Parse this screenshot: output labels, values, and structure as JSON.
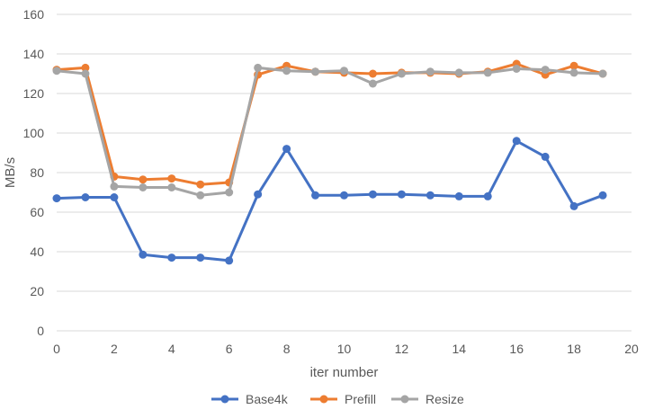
{
  "chart_data": {
    "type": "line",
    "title": "",
    "xlabel": "iter number",
    "ylabel": "MB/s",
    "xlim": [
      0,
      20
    ],
    "ylim": [
      0,
      160
    ],
    "xticks": [
      0,
      2,
      4,
      6,
      8,
      10,
      12,
      14,
      16,
      18,
      20
    ],
    "yticks": [
      0,
      20,
      40,
      60,
      80,
      100,
      120,
      140,
      160
    ],
    "grid": "horizontal",
    "legend_position": "bottom",
    "x": [
      0,
      1,
      2,
      3,
      4,
      5,
      6,
      7,
      8,
      9,
      10,
      11,
      12,
      13,
      14,
      15,
      16,
      17,
      18,
      19
    ],
    "series": [
      {
        "name": "Base4k",
        "color": "#4472C4",
        "values": [
          67,
          67.5,
          67.5,
          38.5,
          37,
          37,
          35.5,
          69,
          92,
          68.5,
          68.5,
          69,
          69,
          68.5,
          68,
          68,
          96,
          88,
          63,
          68.5
        ]
      },
      {
        "name": "Prefill",
        "color": "#ED7D31",
        "values": [
          132,
          133,
          78,
          76.5,
          77,
          74,
          75,
          129.5,
          134,
          131,
          130.5,
          130,
          130.5,
          130.5,
          130,
          131,
          135,
          129.5,
          134,
          130
        ]
      },
      {
        "name": "Resize",
        "color": "#A5A5A5",
        "values": [
          131.5,
          130,
          73,
          72.5,
          72.5,
          68.5,
          70,
          133,
          131.5,
          131,
          131.5,
          125,
          130,
          131,
          130.5,
          130.5,
          132.5,
          132,
          130.5,
          130
        ]
      }
    ]
  }
}
